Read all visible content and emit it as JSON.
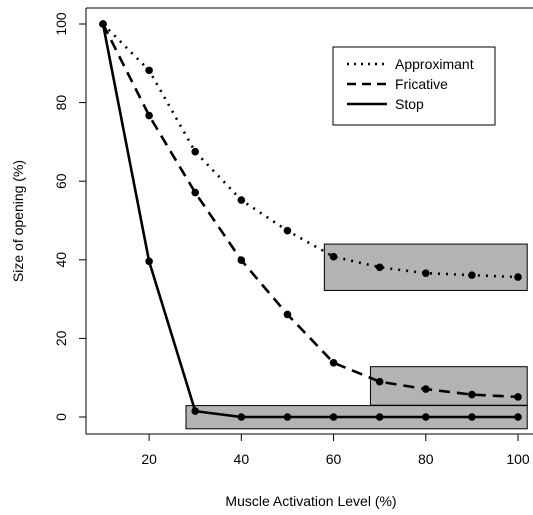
{
  "chart_data": {
    "type": "line",
    "xlabel": "Muscle Activation Level (%)",
    "ylabel": "Size of opening (%)",
    "xlim": [
      10,
      100
    ],
    "ylim": [
      0,
      100
    ],
    "x_ticks": [
      "20",
      "40",
      "60",
      "80",
      "100"
    ],
    "y_ticks": [
      "0",
      "20",
      "40",
      "60",
      "80",
      "100"
    ],
    "grid": false,
    "legend_position": "top-right",
    "x": [
      10,
      20,
      30,
      40,
      50,
      60,
      70,
      80,
      90,
      100
    ],
    "series": [
      {
        "name": "Approximant",
        "dash": "dotted",
        "values": [
          100,
          88.2,
          67.5,
          55.2,
          47.4,
          40.8,
          38.1,
          36.6,
          36.1,
          35.6
        ]
      },
      {
        "name": "Fricative",
        "dash": "dashed",
        "values": [
          100,
          76.7,
          57.1,
          39.9,
          26.1,
          13.8,
          9.0,
          7.1,
          5.7,
          5.1
        ]
      },
      {
        "name": "Stop",
        "dash": "solid",
        "values": [
          100,
          39.6,
          1.5,
          0,
          0,
          0,
          0,
          0,
          0,
          0
        ]
      }
    ],
    "highlight_regions": [
      {
        "x0": 58,
        "x1": 102,
        "y0": 32.2,
        "y1": 44.0,
        "fill": "#b3b3b3"
      },
      {
        "x0": 68,
        "x1": 102,
        "y0": 3.0,
        "y1": 12.8,
        "fill": "#b3b3b3"
      },
      {
        "x0": 28,
        "x1": 102,
        "y0": -3.0,
        "y1": 2.9,
        "fill": "#b3b3b3"
      }
    ]
  }
}
